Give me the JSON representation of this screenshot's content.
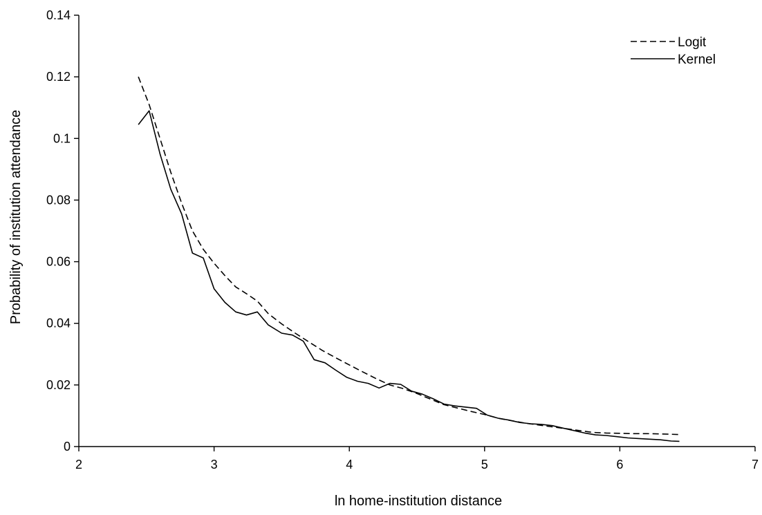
{
  "chart_data": {
    "type": "line",
    "title": "",
    "xlabel": "ln home-institution distance",
    "ylabel": "Probability of institution attendance",
    "xlim": [
      2,
      7
    ],
    "ylim": [
      0,
      0.14
    ],
    "x_ticks": [
      "2",
      "3",
      "4",
      "5",
      "6",
      "7"
    ],
    "y_ticks": [
      "0",
      "0.02",
      "0.04",
      "0.06",
      "0.08",
      "0.1",
      "0.12",
      "0.14"
    ],
    "grid": false,
    "legend_position": "top-right",
    "series": [
      {
        "name": "Logit",
        "style": "dashed",
        "color": "#000000",
        "x": [
          2.44,
          2.52,
          2.6,
          2.68,
          2.76,
          2.84,
          2.92,
          3.0,
          3.08,
          3.16,
          3.24,
          3.32,
          3.4,
          3.5,
          3.6,
          3.7,
          3.8,
          3.9,
          4.0,
          4.1,
          4.2,
          4.3,
          4.4,
          4.5,
          4.6,
          4.7,
          4.8,
          4.9,
          5.0,
          5.1,
          5.2,
          5.3,
          5.4,
          5.5,
          5.6,
          5.7,
          5.8,
          5.9,
          6.0,
          6.1,
          6.2,
          6.3,
          6.44
        ],
        "y": [
          0.12,
          0.111,
          0.1,
          0.089,
          0.079,
          0.07,
          0.064,
          0.0595,
          0.0555,
          0.0518,
          0.0496,
          0.0472,
          0.0432,
          0.0398,
          0.0368,
          0.034,
          0.0312,
          0.0288,
          0.0265,
          0.0242,
          0.022,
          0.02,
          0.0188,
          0.0172,
          0.0154,
          0.0136,
          0.0125,
          0.0114,
          0.0104,
          0.0092,
          0.0084,
          0.0076,
          0.007,
          0.0064,
          0.0058,
          0.0052,
          0.0046,
          0.0044,
          0.0043,
          0.0042,
          0.0042,
          0.0041,
          0.0039
        ]
      },
      {
        "name": "Kernel",
        "style": "solid",
        "color": "#000000",
        "x": [
          2.44,
          2.52,
          2.6,
          2.68,
          2.76,
          2.84,
          2.92,
          3.0,
          3.08,
          3.16,
          3.24,
          3.32,
          3.4,
          3.5,
          3.58,
          3.66,
          3.74,
          3.82,
          3.9,
          3.98,
          4.06,
          4.14,
          4.22,
          4.3,
          4.38,
          4.46,
          4.54,
          4.62,
          4.7,
          4.78,
          4.86,
          4.94,
          5.02,
          5.1,
          5.18,
          5.26,
          5.34,
          5.42,
          5.5,
          5.58,
          5.66,
          5.74,
          5.82,
          5.9,
          5.98,
          6.06,
          6.14,
          6.22,
          6.3,
          6.38,
          6.44
        ],
        "y": [
          0.1045,
          0.109,
          0.095,
          0.0835,
          0.0755,
          0.0628,
          0.0612,
          0.0512,
          0.0468,
          0.0437,
          0.0427,
          0.0437,
          0.0395,
          0.0368,
          0.0362,
          0.0342,
          0.0282,
          0.0272,
          0.0248,
          0.0225,
          0.0212,
          0.0205,
          0.019,
          0.0205,
          0.0202,
          0.018,
          0.017,
          0.0155,
          0.0138,
          0.0132,
          0.0128,
          0.0124,
          0.0102,
          0.0092,
          0.0086,
          0.0078,
          0.0074,
          0.0072,
          0.0068,
          0.006,
          0.0052,
          0.0044,
          0.0038,
          0.0036,
          0.0032,
          0.0028,
          0.0026,
          0.0024,
          0.0022,
          0.0018,
          0.0017
        ]
      }
    ]
  }
}
